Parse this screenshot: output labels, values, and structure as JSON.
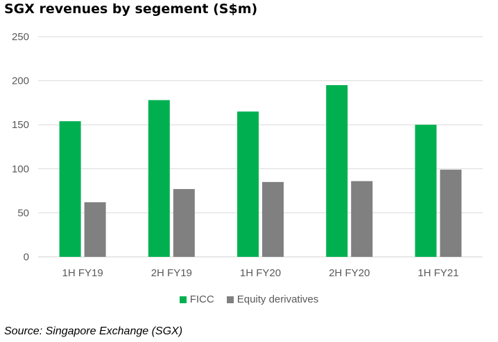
{
  "chart_data": {
    "type": "bar",
    "title": "SGX revenues by segement (S$m)",
    "categories": [
      "1H FY19",
      "2H FY19",
      "1H FY20",
      "2H FY20",
      "1H FY21"
    ],
    "series": [
      {
        "name": "FICC",
        "color": "#00b050",
        "values": [
          154,
          178,
          165,
          195,
          150
        ]
      },
      {
        "name": "Equity derivatives",
        "color": "#808080",
        "values": [
          62,
          77,
          85,
          86,
          99
        ]
      }
    ],
    "ylim": [
      0,
      250
    ],
    "yticks": [
      0,
      50,
      100,
      150,
      200,
      250
    ],
    "grid": true,
    "legend": "bottom",
    "xlabel": "",
    "ylabel": ""
  },
  "source": "Source: Singapore Exchange (SGX)"
}
